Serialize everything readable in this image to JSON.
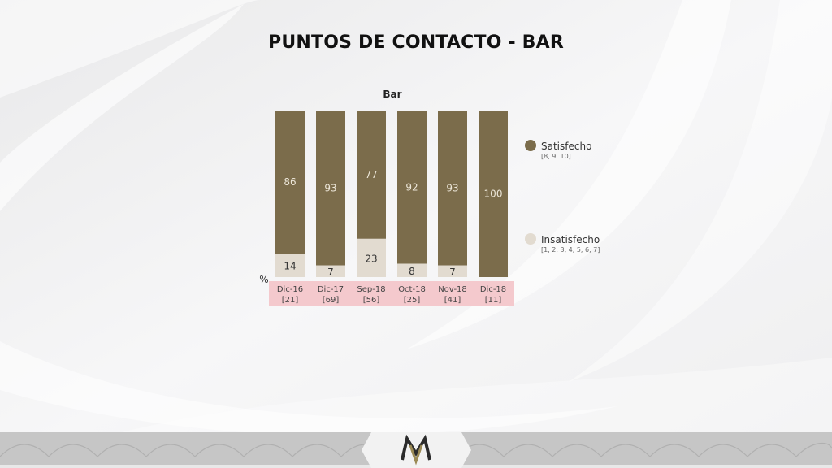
{
  "page": {
    "title": "PUNTOS DE CONTACTO - BAR"
  },
  "chart_data": {
    "type": "bar",
    "stacked": true,
    "title": "Bar",
    "unit_label": "%",
    "categories": [
      "Dic-16",
      "Dic-17",
      "Sep-18",
      "Oct-18",
      "Nov-18",
      "Dic-18"
    ],
    "bases": [
      "[21]",
      "[69]",
      "[56]",
      "[25]",
      "[41]",
      "[11]"
    ],
    "ylim": [
      0,
      100
    ],
    "series": [
      {
        "name": "Insatisfecho",
        "note": "[1, 2, 3, 4, 5, 6, 7]",
        "color": "#e2dbd0",
        "values": [
          14,
          7,
          23,
          8,
          7,
          0
        ]
      },
      {
        "name": "Satisfecho",
        "note": "[8, 9, 10]",
        "color": "#7b6c4b",
        "values": [
          86,
          93,
          77,
          92,
          93,
          100
        ]
      }
    ],
    "legend_order": [
      "Satisfecho",
      "Insatisfecho"
    ],
    "legend_position": "right",
    "category_band_color": "#f4c9cd",
    "grid": false
  }
}
